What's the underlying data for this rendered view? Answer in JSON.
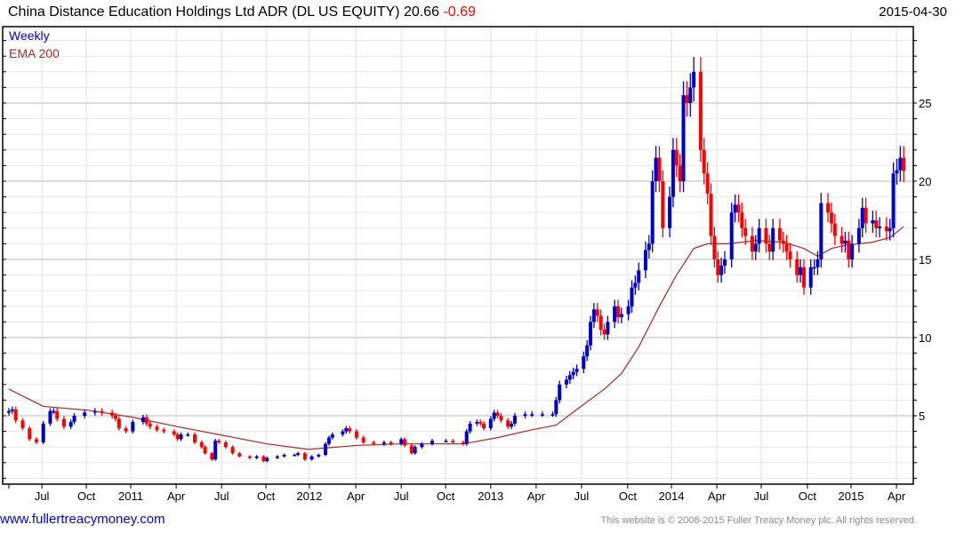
{
  "header": {
    "title": "China Distance Education Holdings Ltd ADR (DL US EQUITY)",
    "last": "20.66",
    "change": "-0.69",
    "date": "2015-04-30"
  },
  "footer": {
    "site": "www.fullertreacymoney.com",
    "copyright": "This website is © 2008-2015 Fuller Treacy Money plc. All rights reserved."
  },
  "colors": {
    "up": "#0000cc",
    "down": "#ff0000",
    "ema": "#a52a2a",
    "legend_weekly": "#0000cc",
    "legend_ema": "#a52a2a"
  },
  "chart_data": {
    "type": "candlestick",
    "title": "China Distance Education Holdings Ltd ADR (DL US EQUITY)",
    "legend": [
      "Weekly",
      "EMA 200"
    ],
    "legend_placement": "top-left",
    "x_unit": "week index from Apr 2010",
    "xlim": [
      0,
      261
    ],
    "ylim": [
      0.6,
      30
    ],
    "y_ticks": [
      5,
      10,
      15,
      20,
      25
    ],
    "x_ticks": [
      {
        "w": 9.6,
        "label": "Jul"
      },
      {
        "w": 22.5,
        "label": "Oct"
      },
      {
        "w": 35.4,
        "label": "2011"
      },
      {
        "w": 48.6,
        "label": "Apr"
      },
      {
        "w": 61.8,
        "label": "Jul"
      },
      {
        "w": 74.7,
        "label": "Oct"
      },
      {
        "w": 87.3,
        "label": "2012"
      },
      {
        "w": 100.8,
        "label": "Apr"
      },
      {
        "w": 114,
        "label": "Jul"
      },
      {
        "w": 126.9,
        "label": "Oct"
      },
      {
        "w": 140,
        "label": "2013"
      },
      {
        "w": 153.2,
        "label": "Apr"
      },
      {
        "w": 166.4,
        "label": "Jul"
      },
      {
        "w": 179.8,
        "label": "Oct"
      },
      {
        "w": 192.5,
        "label": "2014"
      },
      {
        "w": 205.7,
        "label": "Apr"
      },
      {
        "w": 218.6,
        "label": "Jul"
      },
      {
        "w": 232,
        "label": "Oct"
      },
      {
        "w": 244.7,
        "label": "2015"
      },
      {
        "w": 257.9,
        "label": "Apr"
      }
    ],
    "closes": [
      [
        0,
        5.3
      ],
      [
        1,
        5.4
      ],
      [
        2,
        4.7
      ],
      [
        4,
        4.2
      ],
      [
        6,
        3.5
      ],
      [
        8,
        3.3
      ],
      [
        10,
        4.5
      ],
      [
        12,
        5.3
      ],
      [
        13,
        5.3
      ],
      [
        14,
        4.8
      ],
      [
        16,
        4.3
      ],
      [
        18,
        4.6
      ],
      [
        19,
        5.0
      ],
      [
        22,
        5.2
      ],
      [
        25,
        5.3
      ],
      [
        27,
        5.2
      ],
      [
        30,
        5.0
      ],
      [
        31,
        4.8
      ],
      [
        32,
        4.2
      ],
      [
        34,
        4.0
      ],
      [
        36,
        4.6
      ],
      [
        39,
        4.9
      ],
      [
        40,
        4.5
      ],
      [
        41,
        4.3
      ],
      [
        43,
        4.1
      ],
      [
        45,
        4.0
      ],
      [
        48,
        3.8
      ],
      [
        49,
        3.5
      ],
      [
        50,
        3.8
      ],
      [
        52,
        3.8
      ],
      [
        54,
        3.3
      ],
      [
        56,
        3.0
      ],
      [
        57,
        2.6
      ],
      [
        59,
        2.2
      ],
      [
        60,
        3.4
      ],
      [
        61,
        3.3
      ],
      [
        63,
        3.0
      ],
      [
        65,
        2.6
      ],
      [
        67,
        2.4
      ],
      [
        70,
        2.3
      ],
      [
        72,
        2.4
      ],
      [
        74,
        2.1
      ],
      [
        75,
        2.3
      ],
      [
        78,
        2.4
      ],
      [
        80,
        2.5
      ],
      [
        83,
        2.5
      ],
      [
        84,
        2.6
      ],
      [
        86,
        2.2
      ],
      [
        88,
        2.4
      ],
      [
        90,
        2.5
      ],
      [
        92,
        3.2
      ],
      [
        93,
        3.6
      ],
      [
        94,
        3.8
      ],
      [
        97,
        4.0
      ],
      [
        98,
        4.2
      ],
      [
        99,
        4.0
      ],
      [
        101,
        3.6
      ],
      [
        103,
        3.3
      ],
      [
        106,
        3.2
      ],
      [
        109,
        3.3
      ],
      [
        111,
        3.2
      ],
      [
        114,
        3.5
      ],
      [
        115,
        3.1
      ],
      [
        117,
        2.6
      ],
      [
        118,
        3.0
      ],
      [
        120,
        3.2
      ],
      [
        123,
        3.4
      ],
      [
        127,
        3.4
      ],
      [
        129,
        3.3
      ],
      [
        132,
        3.2
      ],
      [
        133,
        4.0
      ],
      [
        134,
        4.5
      ],
      [
        136,
        4.6
      ],
      [
        137,
        4.5
      ],
      [
        138,
        4.2
      ],
      [
        140,
        4.8
      ],
      [
        141,
        5.2
      ],
      [
        142,
        5.0
      ],
      [
        143,
        4.7
      ],
      [
        145,
        4.3
      ],
      [
        146,
        4.5
      ],
      [
        147,
        5.0
      ],
      [
        150,
        5.1
      ],
      [
        152,
        5.1
      ],
      [
        155,
        5.1
      ],
      [
        158,
        5.1
      ],
      [
        159,
        6.0
      ],
      [
        160,
        7.0
      ],
      [
        162,
        7.3
      ],
      [
        163,
        7.6
      ],
      [
        164,
        7.8
      ],
      [
        165,
        8.0
      ],
      [
        167,
        8.8
      ],
      [
        168,
        9.5
      ],
      [
        169,
        11.0
      ],
      [
        170,
        11.8
      ],
      [
        171,
        11.4
      ],
      [
        172,
        10.5
      ],
      [
        173,
        10.2
      ],
      [
        174,
        11.0
      ],
      [
        176,
        12.0
      ],
      [
        177,
        11.3
      ],
      [
        178,
        11.5
      ],
      [
        180,
        12.0
      ],
      [
        181,
        13.2
      ],
      [
        182,
        13.5
      ],
      [
        183,
        14.3
      ],
      [
        185,
        15.6
      ],
      [
        186,
        16.0
      ],
      [
        187,
        20.0
      ],
      [
        188,
        21.5
      ],
      [
        189,
        20.0
      ],
      [
        190,
        17.0
      ],
      [
        192,
        19.0
      ],
      [
        193,
        22.0
      ],
      [
        194,
        21.0
      ],
      [
        195,
        20.0
      ],
      [
        196,
        25.5
      ],
      [
        197,
        25.0
      ],
      [
        198,
        26.0
      ],
      [
        199,
        27.0
      ],
      [
        201,
        22.0
      ],
      [
        202,
        20.5
      ],
      [
        203,
        19.2
      ],
      [
        204,
        16.5
      ],
      [
        205,
        15.0
      ],
      [
        206,
        14.0
      ],
      [
        207,
        14.6
      ],
      [
        208,
        15.0
      ],
      [
        210,
        18.0
      ],
      [
        211,
        18.5
      ],
      [
        212,
        18.0
      ],
      [
        213,
        17.0
      ],
      [
        214,
        16.5
      ],
      [
        216,
        15.5
      ],
      [
        217,
        16.0
      ],
      [
        218,
        17.0
      ],
      [
        220,
        16.0
      ],
      [
        221,
        15.5
      ],
      [
        222,
        17.0
      ],
      [
        224,
        16.2
      ],
      [
        225,
        16.0
      ],
      [
        226,
        15.5
      ],
      [
        227,
        15.0
      ],
      [
        229,
        14.0
      ],
      [
        230,
        14.5
      ],
      [
        231,
        13.2
      ],
      [
        233,
        14.5
      ],
      [
        234,
        14.5
      ],
      [
        235,
        15.0
      ],
      [
        236,
        18.6
      ],
      [
        238,
        18.0
      ],
      [
        239,
        17.3
      ],
      [
        240,
        16.5
      ],
      [
        242,
        16.0
      ],
      [
        243,
        16.2
      ],
      [
        244,
        15.0
      ],
      [
        245,
        16.0
      ],
      [
        247,
        17.0
      ],
      [
        248,
        18.3
      ],
      [
        249,
        17.3
      ],
      [
        251,
        17.5
      ],
      [
        252,
        17.0
      ],
      [
        253,
        17.1
      ],
      [
        255,
        16.8
      ],
      [
        256,
        17.0
      ],
      [
        257,
        20.5
      ],
      [
        258,
        20.7
      ],
      [
        259,
        21.5
      ],
      [
        260,
        20.66
      ]
    ],
    "ema200": [
      [
        0,
        6.7
      ],
      [
        10,
        5.6
      ],
      [
        23,
        5.35
      ],
      [
        36,
        4.9
      ],
      [
        49,
        4.3
      ],
      [
        62,
        3.75
      ],
      [
        75,
        3.2
      ],
      [
        87,
        2.85
      ],
      [
        101,
        3.1
      ],
      [
        114,
        3.2
      ],
      [
        132,
        3.2
      ],
      [
        142,
        3.6
      ],
      [
        152,
        4.1
      ],
      [
        159,
        4.4
      ],
      [
        165,
        5.4
      ],
      [
        173,
        6.7
      ],
      [
        178,
        7.7
      ],
      [
        183,
        9.4
      ],
      [
        189,
        12.0
      ],
      [
        194,
        14.0
      ],
      [
        199,
        15.7
      ],
      [
        203,
        16.0
      ],
      [
        209,
        16.0
      ],
      [
        217,
        16.2
      ],
      [
        225,
        16.1
      ],
      [
        231,
        15.7
      ],
      [
        235,
        15.2
      ],
      [
        239,
        15.7
      ],
      [
        243,
        15.9
      ],
      [
        251,
        16.1
      ],
      [
        256,
        16.4
      ],
      [
        260,
        17.1
      ]
    ]
  }
}
